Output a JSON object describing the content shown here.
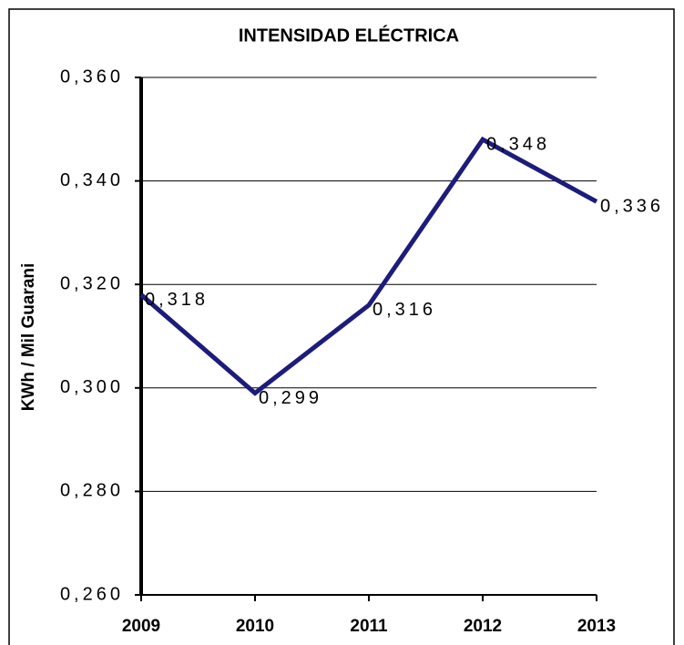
{
  "chart_data": {
    "type": "line",
    "title": "INTENSIDAD ELÉCTRICA",
    "y_label": "KWh / Mil Guarani",
    "categories": [
      "2009",
      "2010",
      "2011",
      "2012",
      "2013"
    ],
    "series": [
      {
        "name": "Intensidad eléctrica",
        "color": "#1c1c7c",
        "values": [
          0.318,
          0.299,
          0.316,
          0.348,
          0.336
        ],
        "value_labels": [
          "0,318",
          "0,299",
          "0,316",
          "0,348",
          "0,336"
        ]
      }
    ],
    "ylim": [
      0.26,
      0.36
    ],
    "yticks": [
      {
        "value": 0.26,
        "label": "0,260"
      },
      {
        "value": 0.28,
        "label": "0,280"
      },
      {
        "value": 0.3,
        "label": "0,300"
      },
      {
        "value": 0.32,
        "label": "0,320"
      },
      {
        "value": 0.34,
        "label": "0,340"
      },
      {
        "value": 0.36,
        "label": "0,360"
      }
    ],
    "grid": true
  }
}
